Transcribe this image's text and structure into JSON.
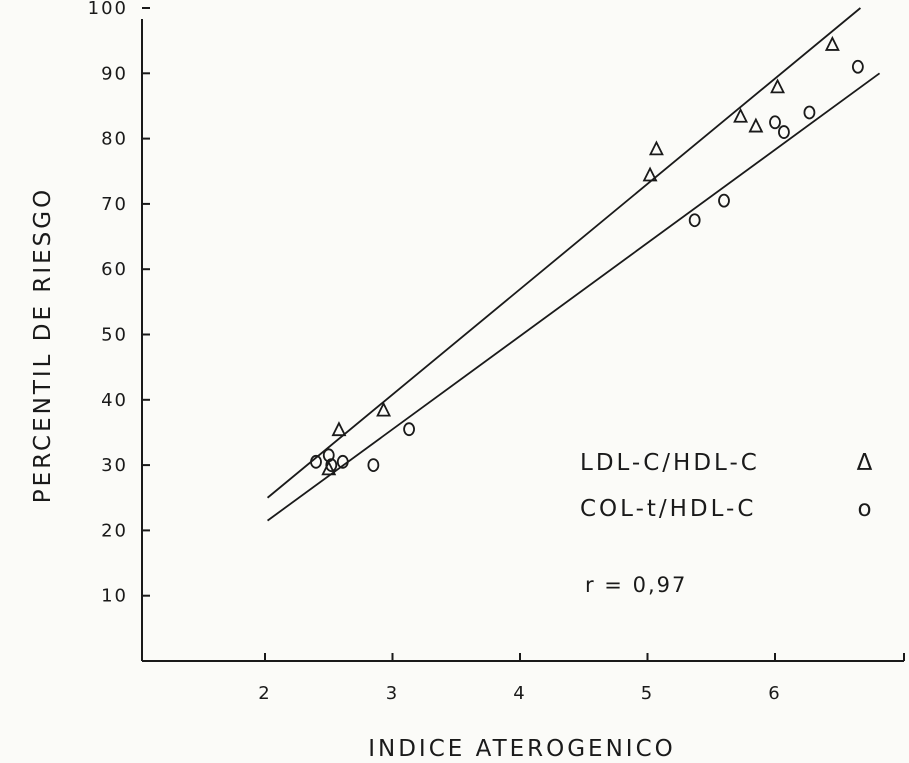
{
  "chart_data": {
    "type": "scatter",
    "xlabel": "INDICE ATEROGENICO",
    "ylabel": "PERCENTIL DE RIESGO",
    "xlim": [
      1,
      7
    ],
    "ylim": [
      0,
      100
    ],
    "xticks": [
      2,
      3,
      4,
      5,
      6
    ],
    "yticks": [
      10,
      20,
      30,
      40,
      50,
      60,
      70,
      80,
      90,
      100
    ],
    "grid": false,
    "legend_position": "right",
    "series": [
      {
        "name": "LDL-C/HDL-C",
        "marker_symbol": "Δ",
        "points": [
          [
            2.5,
            29.5
          ],
          [
            2.58,
            35.5
          ],
          [
            2.93,
            38.5
          ],
          [
            5.02,
            74.5
          ],
          [
            5.07,
            78.5
          ],
          [
            5.73,
            83.5
          ],
          [
            5.85,
            82.0
          ],
          [
            6.02,
            88.0
          ],
          [
            6.45,
            94.5
          ]
        ],
        "fit_line": [
          [
            2.02,
            25.0
          ],
          [
            6.67,
            100.0
          ]
        ]
      },
      {
        "name": "COL-t/HDL-C",
        "marker_symbol": "o",
        "points": [
          [
            2.4,
            30.5
          ],
          [
            2.5,
            31.5
          ],
          [
            2.52,
            30.0
          ],
          [
            2.61,
            30.5
          ],
          [
            2.85,
            30.0
          ],
          [
            3.13,
            35.5
          ],
          [
            5.37,
            67.5
          ],
          [
            5.6,
            70.5
          ],
          [
            6.0,
            82.5
          ],
          [
            6.07,
            81.0
          ],
          [
            6.27,
            84.0
          ],
          [
            6.65,
            91.0
          ]
        ],
        "fit_line": [
          [
            2.02,
            21.5
          ],
          [
            6.82,
            90.0
          ]
        ]
      }
    ],
    "annotations": [
      {
        "text": "r = 0,97"
      }
    ]
  }
}
